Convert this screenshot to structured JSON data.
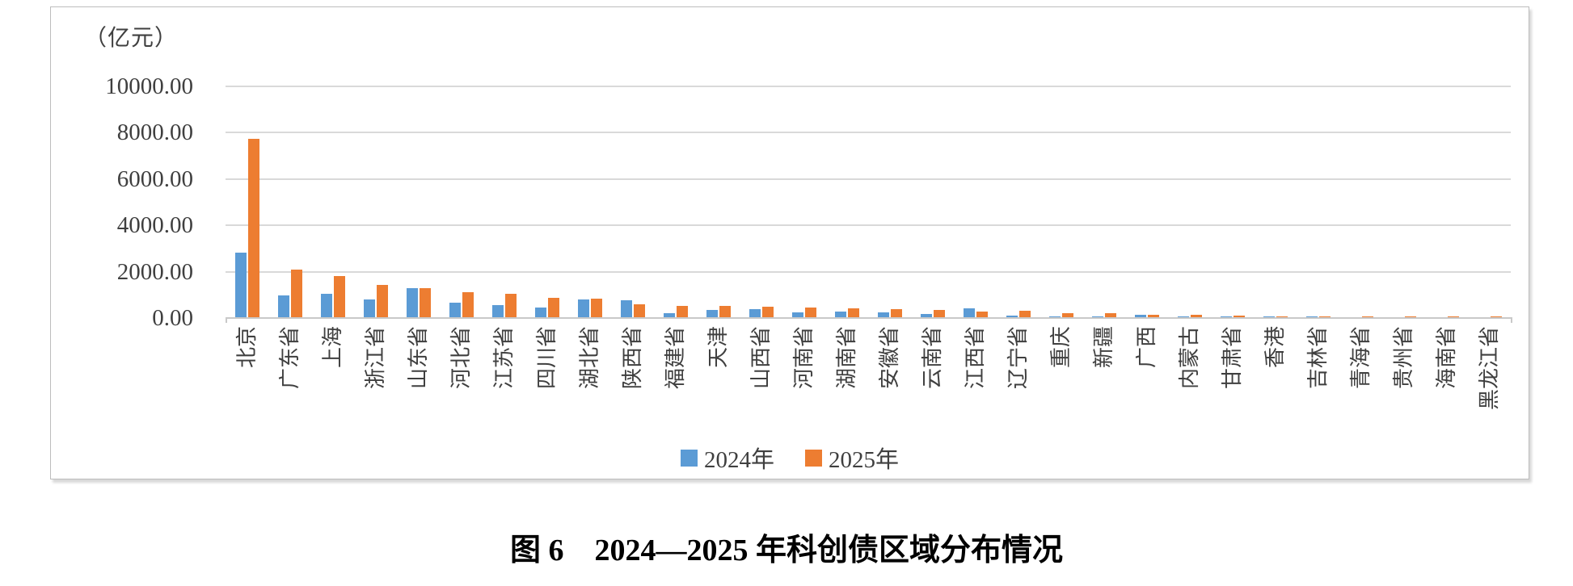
{
  "figure": {
    "unit_label": "（亿元）",
    "caption": "图 6　2024—2025 年科创债区域分布情况"
  },
  "chart_data": {
    "type": "bar",
    "title": "图 6　2024—2025 年科创债区域分布情况",
    "unit_label": "（亿元）",
    "categories": [
      "北京",
      "广东省",
      "上海",
      "浙江省",
      "山东省",
      "河北省",
      "江苏省",
      "四川省",
      "湖北省",
      "陕西省",
      "福建省",
      "天津",
      "山西省",
      "河南省",
      "湖南省",
      "安徽省",
      "云南省",
      "江西省",
      "辽宁省",
      "重庆",
      "新疆",
      "广西",
      "内蒙古",
      "甘肃省",
      "香港",
      "吉林省",
      "青海省",
      "贵州省",
      "海南省",
      "黑龙江省"
    ],
    "series": [
      {
        "name": "2024年",
        "color": "#5B9BD5",
        "values": [
          2770,
          950,
          1020,
          750,
          1250,
          620,
          510,
          410,
          770,
          720,
          160,
          300,
          340,
          220,
          250,
          220,
          130,
          380,
          80,
          20,
          40,
          120,
          10,
          10,
          50,
          5,
          0,
          0,
          0,
          0
        ]
      },
      {
        "name": "2025年",
        "color": "#ED7D31",
        "values": [
          7700,
          2060,
          1780,
          1380,
          1240,
          1090,
          1020,
          840,
          790,
          550,
          470,
          490,
          440,
          400,
          370,
          350,
          300,
          250,
          270,
          190,
          190,
          110,
          90,
          70,
          45,
          50,
          30,
          20,
          15,
          8
        ]
      }
    ],
    "ylim": [
      0,
      10000
    ],
    "ytick_interval": 2000,
    "ytick_labels": [
      "0.00",
      "2000.00",
      "4000.00",
      "6000.00",
      "8000.00",
      "10000.00"
    ],
    "grid": true,
    "legend_position": "bottom-center",
    "gridline_color": "#D9D9D9",
    "axis_text_color": "#3F3F3F"
  }
}
